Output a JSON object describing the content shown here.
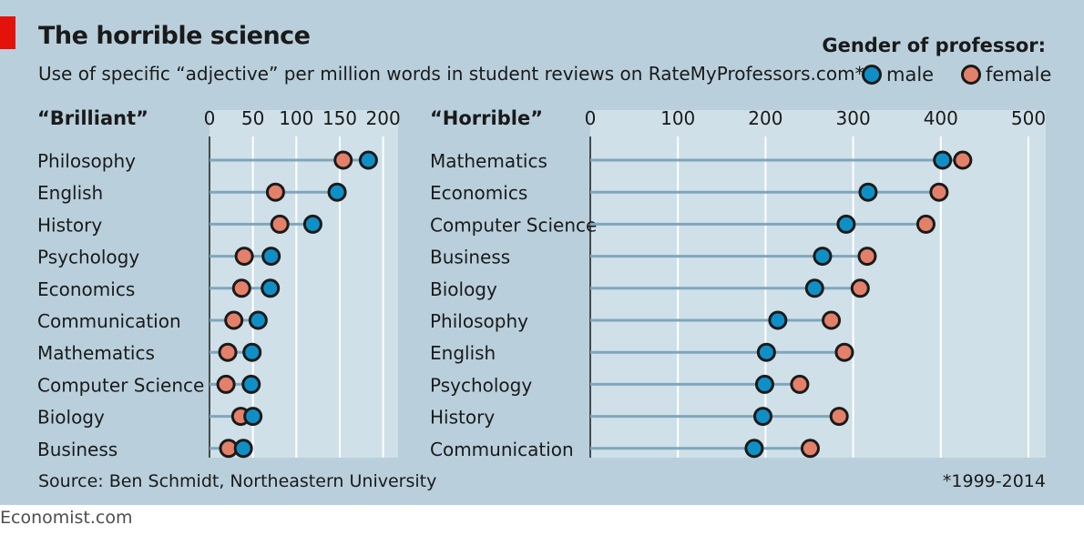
{
  "title": "The horrible science",
  "subtitle": "Use of specific “adjective” per million words in student reviews on RateMyProfessors.com*",
  "legend": {
    "title": "Gender of professor:",
    "male_label": "male",
    "female_label": "female"
  },
  "source": "Source: Ben Schmidt, Northeastern University",
  "footnote": "*1999-2014",
  "brand": "Economist.com",
  "colors": {
    "male": "#0f8fc6",
    "female": "#e3806a",
    "panel": "#b9d0dc",
    "plot": "#cfe0e8",
    "line": "#7fa6bd",
    "accent": "#e3120b"
  },
  "chart_data": [
    {
      "type": "dot",
      "panel_label": "“Brilliant”",
      "xlim": [
        0,
        200
      ],
      "xticks": [
        "0",
        "50",
        "100",
        "150",
        "200"
      ],
      "grid": true,
      "categories": [
        "Philosophy",
        "English",
        "History",
        "Psychology",
        "Economics",
        "Communication",
        "Mathematics",
        "Computer Science",
        "Biology",
        "Business"
      ],
      "series": [
        {
          "name": "male",
          "values": [
            183,
            147,
            119,
            71,
            70,
            56,
            49,
            48,
            50,
            39
          ]
        },
        {
          "name": "female",
          "values": [
            154,
            76,
            81,
            40,
            37,
            28,
            21,
            19,
            36,
            22
          ]
        }
      ]
    },
    {
      "type": "dot",
      "panel_label": "“Horrible”",
      "xlim": [
        0,
        500
      ],
      "xticks": [
        "0",
        "100",
        "200",
        "300",
        "400",
        "500"
      ],
      "grid": true,
      "categories": [
        "Mathematics",
        "Economics",
        "Computer Science",
        "Business",
        "Biology",
        "Philosophy",
        "English",
        "Psychology",
        "History",
        "Communication"
      ],
      "series": [
        {
          "name": "male",
          "values": [
            402,
            317,
            292,
            265,
            256,
            214,
            201,
            199,
            197,
            187
          ]
        },
        {
          "name": "female",
          "values": [
            425,
            398,
            383,
            316,
            308,
            275,
            290,
            239,
            284,
            251
          ]
        }
      ]
    }
  ]
}
